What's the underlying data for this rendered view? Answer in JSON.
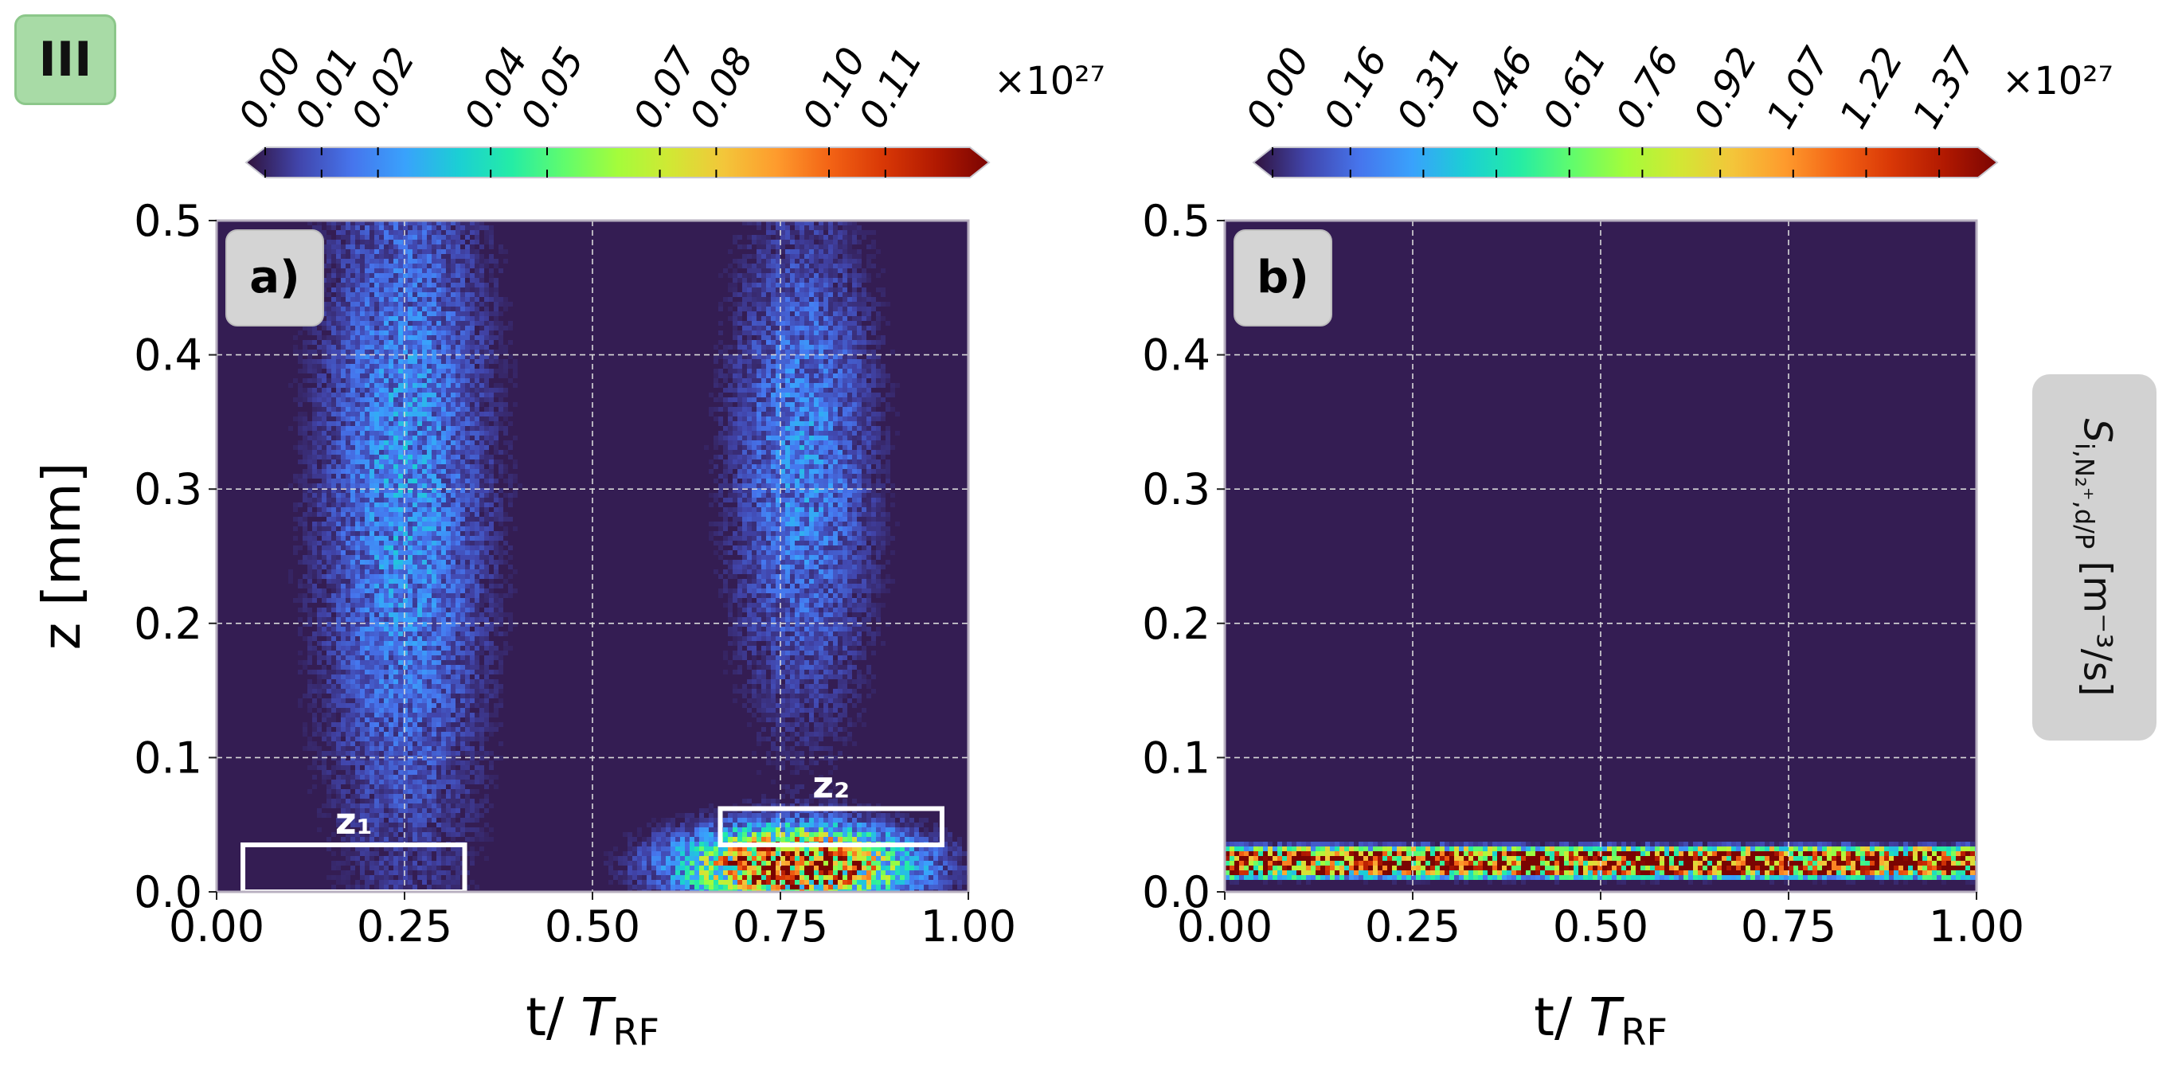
{
  "badge": "III",
  "side_label": {
    "symbol": "S",
    "subscript": "i,N₂⁺,d/P",
    "unit": "[m⁻³/s]"
  },
  "chart_data": [
    {
      "type": "heatmap",
      "panel_label": "a)",
      "xlabel": "t/ T_RF",
      "ylabel": "z [mm]",
      "xlim": [
        0.0,
        1.0
      ],
      "ylim": [
        0.0,
        0.5
      ],
      "xticks": [
        "0.00",
        "0.25",
        "0.50",
        "0.75",
        "1.00"
      ],
      "yticks": [
        "0.0",
        "0.1",
        "0.2",
        "0.3",
        "0.4",
        "0.5"
      ],
      "grid": true,
      "colormap": "turbo",
      "colorbar": {
        "orientation": "horizontal",
        "ticks": [
          "0.00",
          "0.01",
          "0.02",
          "0.04",
          "0.05",
          "0.07",
          "0.08",
          "0.10",
          "0.11"
        ],
        "multiplier": "×10²⁷",
        "vmax": 0.125
      },
      "features": [
        {
          "kind": "blob",
          "t": 0.25,
          "z": 0.3,
          "sigma_t": 0.07,
          "sigma_z": 0.18,
          "level": 0.022
        },
        {
          "kind": "blob",
          "t": 0.78,
          "z": 0.32,
          "sigma_t": 0.06,
          "sigma_z": 0.12,
          "level": 0.02
        },
        {
          "kind": "hotspot",
          "t": 0.77,
          "z": 0.02,
          "sigma_t": 0.09,
          "sigma_z": 0.017,
          "level": 0.125
        }
      ],
      "annotations": [
        {
          "label": "z₁",
          "t0": 0.035,
          "t1": 0.33,
          "z0": 0.0,
          "z1": 0.035
        },
        {
          "label": "z₂",
          "t0": 0.67,
          "t1": 0.965,
          "z0": 0.035,
          "z1": 0.062
        }
      ]
    },
    {
      "type": "heatmap",
      "panel_label": "b)",
      "xlabel": "t/ T_RF",
      "ylabel": "",
      "xlim": [
        0.0,
        1.0
      ],
      "ylim": [
        0.0,
        0.5
      ],
      "xticks": [
        "0.00",
        "0.25",
        "0.50",
        "0.75",
        "1.00"
      ],
      "yticks": [
        "0.0",
        "0.1",
        "0.2",
        "0.3",
        "0.4",
        "0.5"
      ],
      "grid": true,
      "colormap": "turbo",
      "colorbar": {
        "orientation": "horizontal",
        "ticks": [
          "0.00",
          "0.16",
          "0.31",
          "0.46",
          "0.61",
          "0.76",
          "0.92",
          "1.07",
          "1.22",
          "1.37"
        ],
        "multiplier": "×10²⁷",
        "vmax": 1.45
      },
      "features": [
        {
          "kind": "band",
          "z": 0.022,
          "sigma_z": 0.009,
          "level": 1.3
        }
      ],
      "annotations": []
    }
  ]
}
